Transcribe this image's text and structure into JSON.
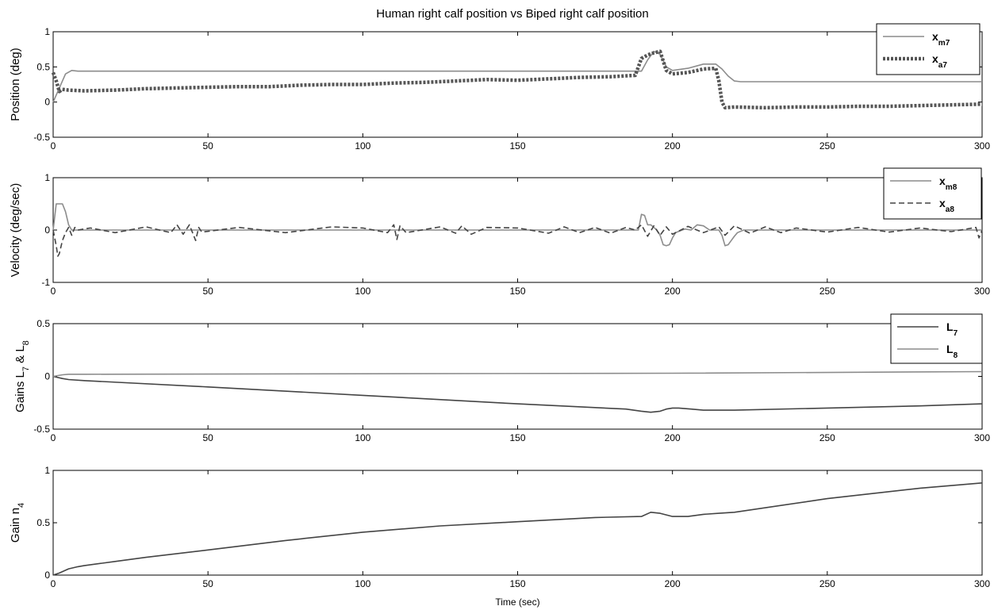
{
  "title": "Human right calf position vs Biped right calf position",
  "chart_data": [
    {
      "type": "line",
      "ylabel": "Position (deg)",
      "xlabel": "",
      "xlim": [
        0,
        300
      ],
      "ylim": [
        -0.5,
        1
      ],
      "xticks": [
        0,
        50,
        100,
        150,
        200,
        250,
        300
      ],
      "yticks": [
        -0.5,
        0,
        0.5,
        1
      ],
      "ytick_labels": [
        "-0.5",
        "0",
        "0.5",
        "1"
      ],
      "legend": "top-right",
      "series": [
        {
          "name": "x",
          "sub": "m7",
          "color": "#8c8c8c",
          "dash": "solid",
          "x": [
            0,
            2,
            4,
            6,
            8,
            190,
            192,
            194,
            196,
            198,
            200,
            205,
            210,
            214,
            216,
            218,
            220,
            222,
            300
          ],
          "y": [
            0,
            0.2,
            0.4,
            0.45,
            0.44,
            0.44,
            0.6,
            0.72,
            0.68,
            0.5,
            0.45,
            0.48,
            0.54,
            0.54,
            0.47,
            0.37,
            0.3,
            0.29,
            0.29
          ]
        },
        {
          "name": "x",
          "sub": "a7",
          "color": "#555555",
          "dash": "dotted",
          "x": [
            0,
            1,
            2,
            3,
            5,
            10,
            20,
            30,
            40,
            50,
            60,
            70,
            80,
            90,
            100,
            110,
            120,
            130,
            140,
            150,
            160,
            170,
            180,
            188,
            190,
            192,
            194,
            196,
            198,
            200,
            205,
            210,
            214,
            215,
            216,
            217,
            220,
            230,
            240,
            250,
            260,
            270,
            280,
            290,
            300
          ],
          "y": [
            0.42,
            0.3,
            0.15,
            0.18,
            0.17,
            0.16,
            0.17,
            0.19,
            0.2,
            0.21,
            0.22,
            0.22,
            0.24,
            0.25,
            0.25,
            0.27,
            0.28,
            0.3,
            0.32,
            0.31,
            0.33,
            0.35,
            0.36,
            0.38,
            0.62,
            0.67,
            0.7,
            0.72,
            0.45,
            0.4,
            0.42,
            0.47,
            0.48,
            0.3,
            0.0,
            -0.08,
            -0.07,
            -0.08,
            -0.07,
            -0.07,
            -0.06,
            -0.06,
            -0.05,
            -0.04,
            -0.03
          ]
        }
      ]
    },
    {
      "type": "line",
      "ylabel": "Velocity (deg/sec)",
      "xlabel": "",
      "xlim": [
        0,
        300
      ],
      "ylim": [
        -1,
        1
      ],
      "xticks": [
        0,
        50,
        100,
        150,
        200,
        250,
        300
      ],
      "yticks": [
        -1,
        0,
        1
      ],
      "ytick_labels": [
        "-1",
        "0",
        "1"
      ],
      "legend": "top-right",
      "series": [
        {
          "name": "x",
          "sub": "m8",
          "color": "#8c8c8c",
          "dash": "solid",
          "x": [
            0,
            1,
            2,
            3,
            4,
            5,
            6,
            8,
            189,
            190,
            191,
            192,
            193,
            194,
            195,
            196,
            197,
            198,
            199,
            200,
            201,
            204,
            206,
            208,
            210,
            212,
            214,
            215,
            216,
            217,
            218,
            219,
            220,
            221,
            223,
            300
          ],
          "y": [
            0,
            0.5,
            0.5,
            0.5,
            0.35,
            0.1,
            0,
            0,
            0,
            0.3,
            0.28,
            0.1,
            0.1,
            0.05,
            0,
            -0.1,
            -0.28,
            -0.3,
            -0.28,
            -0.15,
            -0.05,
            0.02,
            0,
            0.1,
            0.08,
            0,
            0,
            0,
            -0.1,
            -0.3,
            -0.28,
            -0.2,
            -0.12,
            -0.05,
            0,
            0
          ]
        },
        {
          "name": "x",
          "sub": "a8",
          "color": "#444444",
          "dash": "dashed",
          "x": [
            0,
            1,
            1.5,
            2,
            3,
            4,
            5,
            6,
            7,
            8,
            12,
            20,
            30,
            38,
            40,
            42,
            44,
            45,
            46,
            47,
            48,
            60,
            75,
            90,
            100,
            108,
            110,
            111,
            112,
            114,
            125,
            130,
            132,
            135,
            140,
            150,
            160,
            165,
            170,
            175,
            180,
            185,
            188,
            190,
            192,
            194,
            196,
            198,
            200,
            205,
            210,
            215,
            217,
            220,
            225,
            230,
            235,
            240,
            250,
            260,
            270,
            280,
            290,
            298,
            299,
            300
          ],
          "y": [
            0,
            -0.3,
            -0.5,
            -0.45,
            -0.2,
            -0.05,
            0.05,
            -0.1,
            0.05,
            0,
            0.04,
            -0.05,
            0.06,
            -0.05,
            0.1,
            -0.08,
            0.1,
            -0.05,
            -0.2,
            0.05,
            -0.04,
            0.05,
            -0.05,
            0.06,
            0.04,
            -0.05,
            0.1,
            -0.18,
            0.08,
            -0.05,
            0.06,
            -0.06,
            0.08,
            -0.08,
            0.05,
            0.04,
            -0.06,
            0.06,
            -0.05,
            0.05,
            -0.06,
            0.05,
            0,
            0.1,
            -0.12,
            0.08,
            -0.1,
            0.06,
            -0.08,
            0.07,
            -0.05,
            0.06,
            -0.1,
            0.08,
            -0.06,
            0.06,
            -0.05,
            0.04,
            -0.04,
            0.05,
            -0.04,
            0.04,
            -0.03,
            0.05,
            -0.15,
            0
          ]
        }
      ]
    },
    {
      "type": "line",
      "ylabel": "Gains L",
      "ylabel_parts": [
        "Gains L",
        "7",
        " & L",
        "8"
      ],
      "xlabel": "",
      "xlim": [
        0,
        300
      ],
      "ylim": [
        -0.5,
        0.5
      ],
      "xticks": [
        0,
        50,
        100,
        150,
        200,
        250,
        300
      ],
      "yticks": [
        -0.5,
        0,
        0.5
      ],
      "ytick_labels": [
        "-0.5",
        "0",
        "0.5"
      ],
      "legend": "top-right",
      "series": [
        {
          "name": "L",
          "sub": "7",
          "color": "#444444",
          "dash": "solid",
          "x": [
            0,
            3,
            5,
            10,
            50,
            100,
            150,
            185,
            190,
            193,
            196,
            198,
            200,
            202,
            206,
            210,
            215,
            220,
            250,
            280,
            300
          ],
          "y": [
            0,
            -0.02,
            -0.03,
            -0.04,
            -0.1,
            -0.18,
            -0.26,
            -0.31,
            -0.33,
            -0.34,
            -0.33,
            -0.31,
            -0.3,
            -0.3,
            -0.31,
            -0.32,
            -0.32,
            -0.32,
            -0.3,
            -0.28,
            -0.26
          ]
        },
        {
          "name": "L",
          "sub": "8",
          "color": "#8c8c8c",
          "dash": "solid",
          "x": [
            0,
            3,
            5,
            10,
            100,
            200,
            300
          ],
          "y": [
            0,
            0.015,
            0.02,
            0.02,
            0.025,
            0.03,
            0.045
          ]
        }
      ]
    },
    {
      "type": "line",
      "ylabel": "Gain n",
      "ylabel_parts": [
        "Gain n",
        "4"
      ],
      "xlabel": "Time (sec)",
      "xlim": [
        0,
        300
      ],
      "ylim": [
        0,
        1
      ],
      "xticks": [
        0,
        50,
        100,
        150,
        200,
        250,
        300
      ],
      "yticks": [
        0,
        0.5,
        1
      ],
      "ytick_labels": [
        "0",
        "0.5",
        "1"
      ],
      "legend": "none",
      "series": [
        {
          "name": "",
          "sub": "",
          "color": "#444444",
          "dash": "solid",
          "x": [
            0,
            2,
            5,
            8,
            10,
            20,
            30,
            50,
            75,
            100,
            125,
            150,
            175,
            190,
            193,
            196,
            200,
            205,
            210,
            215,
            220,
            250,
            280,
            300
          ],
          "y": [
            0,
            0.02,
            0.06,
            0.08,
            0.09,
            0.13,
            0.17,
            0.24,
            0.33,
            0.41,
            0.47,
            0.51,
            0.55,
            0.56,
            0.6,
            0.59,
            0.56,
            0.56,
            0.58,
            0.59,
            0.6,
            0.73,
            0.83,
            0.88
          ]
        }
      ]
    }
  ]
}
